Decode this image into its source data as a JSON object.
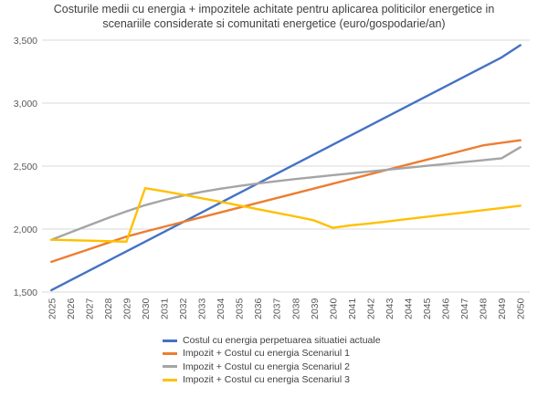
{
  "chart_data": {
    "type": "line",
    "title_lines": [
      "Costurile medii cu energia + impozitele achitate pentru aplicarea politicilor energetice in",
      "scenariile considerate si comunitati energetice (euro/gospodarie/an)"
    ],
    "xlabel": "",
    "ylabel": "",
    "x": [
      "2025",
      "2026",
      "2027",
      "2028",
      "2029",
      "2030",
      "2031",
      "2032",
      "2033",
      "2034",
      "2035",
      "2036",
      "2037",
      "2038",
      "2039",
      "2040",
      "2041",
      "2042",
      "2043",
      "2044",
      "2045",
      "2046",
      "2047",
      "2048",
      "2049",
      "2050"
    ],
    "ylim": [
      1500,
      3500
    ],
    "yticks": [
      1500,
      2000,
      2500,
      3000,
      3500
    ],
    "ytick_labels": [
      "1,500",
      "2,000",
      "2,500",
      "3,000",
      "3,500"
    ],
    "grid": true,
    "legend_position": "bottom",
    "series": [
      {
        "name": "Costul cu energia perpetuarea situatiei actuale",
        "color": "#4472C4",
        "values": [
          1515,
          1592,
          1669,
          1746,
          1823,
          1900,
          1977,
          2054,
          2131,
          2208,
          2285,
          2362,
          2439,
          2516,
          2593,
          2670,
          2747,
          2824,
          2901,
          2978,
          3055,
          3132,
          3209,
          3286,
          3363,
          3460
        ]
      },
      {
        "name": "Impozit + Costul cu energia Scenariul 1",
        "color": "#ED7D31",
        "values": [
          1740,
          1790,
          1840,
          1890,
          1940,
          1980,
          2018,
          2056,
          2094,
          2132,
          2170,
          2208,
          2246,
          2284,
          2322,
          2360,
          2398,
          2436,
          2474,
          2512,
          2550,
          2588,
          2626,
          2664,
          2685,
          2705
        ]
      },
      {
        "name": "Impozit + Costul cu energia Scenariul 2",
        "color": "#A5A5A5",
        "values": [
          1915,
          1973,
          2030,
          2087,
          2140,
          2190,
          2230,
          2265,
          2295,
          2320,
          2342,
          2362,
          2380,
          2397,
          2413,
          2428,
          2443,
          2458,
          2472,
          2487,
          2502,
          2517,
          2532,
          2547,
          2562,
          2650
        ]
      },
      {
        "name": "Impozit + Costul cu energia Scenariul 3",
        "color": "#FFC000",
        "values": [
          1915,
          1912,
          1908,
          1904,
          1900,
          2325,
          2300,
          2273,
          2245,
          2217,
          2188,
          2158,
          2129,
          2100,
          2069,
          2010,
          2030,
          2045,
          2062,
          2080,
          2097,
          2115,
          2132,
          2150,
          2167,
          2185
        ]
      }
    ]
  }
}
